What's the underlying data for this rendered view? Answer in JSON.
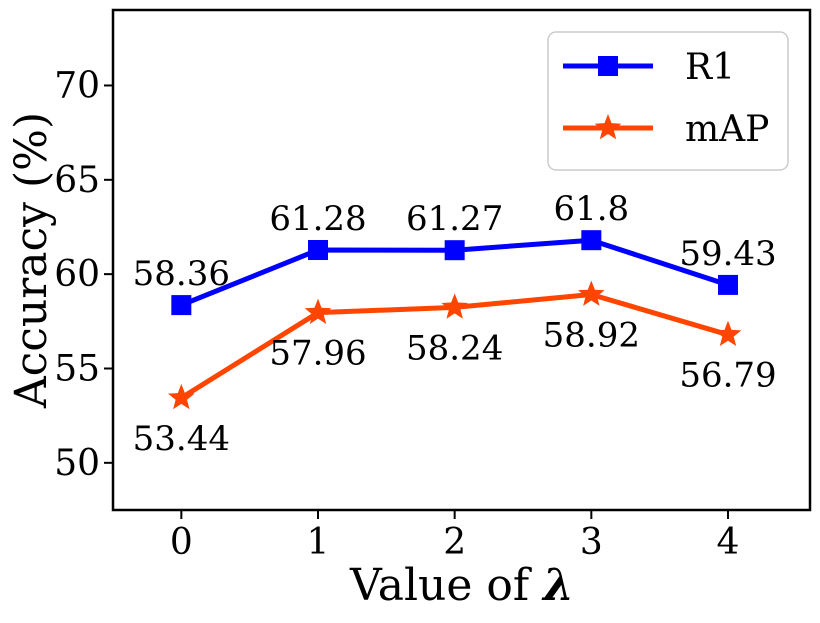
{
  "chart_data": {
    "type": "line",
    "title": "",
    "xlabel_prefix": "Value of ",
    "xlabel_symbol": "λ",
    "ylabel": "Accuracy (%)",
    "x": [
      0,
      1,
      2,
      3,
      4
    ],
    "x_tick_labels": [
      "0",
      "1",
      "2",
      "3",
      "4"
    ],
    "xlim": [
      -0.5,
      4.6
    ],
    "ylim": [
      47.5,
      74
    ],
    "y_ticks": [
      50,
      55,
      60,
      65,
      70
    ],
    "y_tick_labels": [
      "50",
      "55",
      "60",
      "65",
      "70"
    ],
    "grid": false,
    "legend_position": "top-right",
    "series": [
      {
        "name": "R1",
        "color": "#0000ff",
        "marker": "square",
        "values": [
          58.36,
          61.28,
          61.27,
          61.8,
          59.43
        ],
        "labels": [
          "58.36",
          "61.28",
          "61.27",
          "61.8",
          "59.43"
        ],
        "label_side": "above"
      },
      {
        "name": "mAP",
        "color": "#ff4500",
        "marker": "star",
        "values": [
          53.44,
          57.96,
          58.24,
          58.92,
          56.79
        ],
        "labels": [
          "53.44",
          "57.96",
          "58.24",
          "58.92",
          "56.79"
        ],
        "label_side": "below"
      }
    ]
  }
}
